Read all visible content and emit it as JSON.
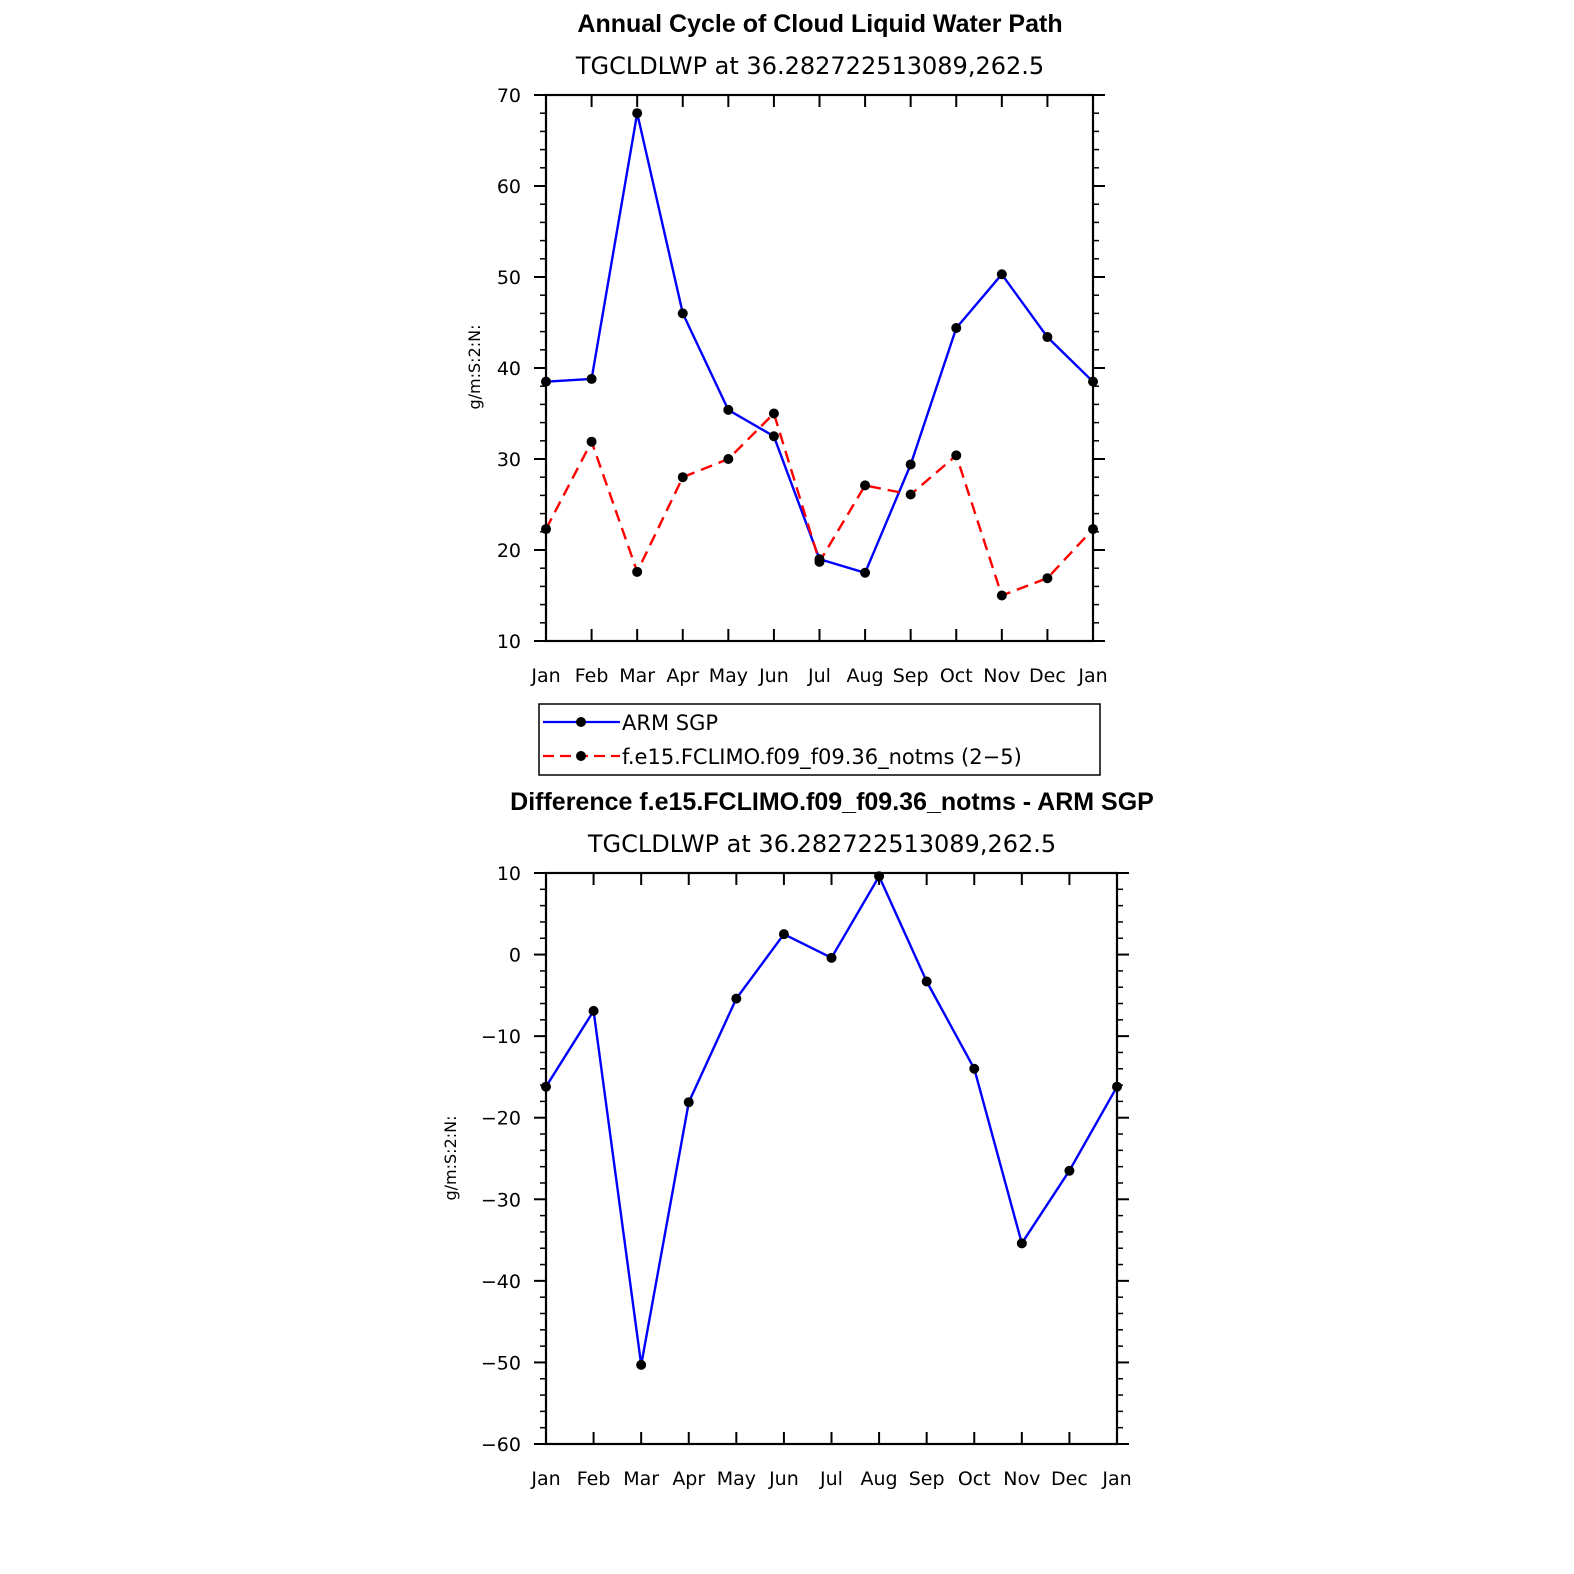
{
  "chart_data": [
    {
      "type": "line",
      "title": "Annual Cycle of Cloud Liquid Water Path",
      "subtitle": "TGCLDLWP  at 36.282722513089,262.5",
      "xlabel": "",
      "ylabel": "g/m:S:2:N:",
      "categories": [
        "Jan",
        "Feb",
        "Mar",
        "Apr",
        "May",
        "Jun",
        "Jul",
        "Aug",
        "Sep",
        "Oct",
        "Nov",
        "Dec",
        "Jan"
      ],
      "ylim": [
        10,
        70
      ],
      "yticks": [
        10,
        20,
        30,
        40,
        50,
        60,
        70
      ],
      "series": [
        {
          "name": "ARM SGP",
          "color": "#0000ff",
          "dash": false,
          "values": [
            38.5,
            38.8,
            68.0,
            46.0,
            35.4,
            32.5,
            19.0,
            17.5,
            29.4,
            44.4,
            50.3,
            43.4,
            38.5
          ]
        },
        {
          "name": "f.e15.FCLIMO.f09_f09.36_notms (2−5)",
          "color": "#ff0000",
          "dash": true,
          "values": [
            22.3,
            31.9,
            17.6,
            28.0,
            30.0,
            35.0,
            18.7,
            27.1,
            26.1,
            30.4,
            15.0,
            16.9,
            22.3
          ]
        }
      ],
      "legend_position": "below"
    },
    {
      "type": "line",
      "title": "Difference f.e15.FCLIMO.f09_f09.36_notms - ARM SGP",
      "subtitle": "TGCLDLWP  at 36.282722513089,262.5",
      "xlabel": "",
      "ylabel": "g/m:S:2:N:",
      "categories": [
        "Jan",
        "Feb",
        "Mar",
        "Apr",
        "May",
        "Jun",
        "Jul",
        "Aug",
        "Sep",
        "Oct",
        "Nov",
        "Dec",
        "Jan"
      ],
      "ylim": [
        -60,
        10
      ],
      "yticks": [
        10,
        0,
        -10,
        -20,
        -30,
        -40,
        -50,
        -60
      ],
      "series": [
        {
          "name": "Difference",
          "color": "#0000ff",
          "dash": false,
          "values": [
            -16.2,
            -6.9,
            -50.3,
            -18.1,
            -5.4,
            2.5,
            -0.4,
            9.6,
            -3.3,
            -14.0,
            -35.4,
            -26.5,
            -16.2
          ]
        }
      ]
    }
  ]
}
